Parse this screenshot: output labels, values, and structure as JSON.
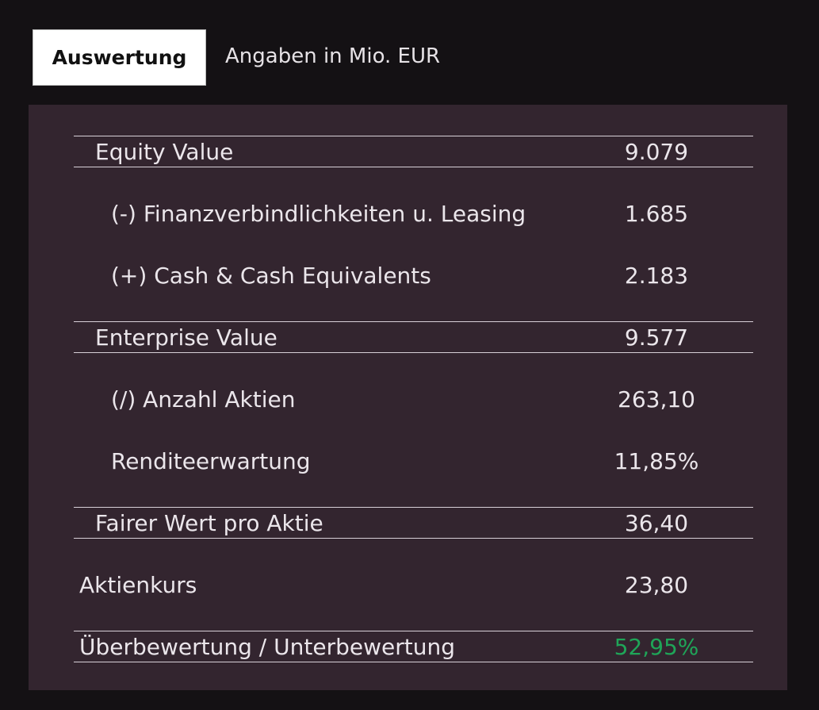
{
  "header": {
    "tab": "Auswertung",
    "note": "Angaben in Mio. EUR"
  },
  "table": {
    "rows": [
      [
        "Equity Value",
        "9.079"
      ],
      [
        "(-)  Finanzverbindlichkeiten u. Leasing",
        "1.685"
      ],
      [
        "(+) Cash & Cash Equivalents",
        "2.183"
      ],
      [
        "Enterprise Value",
        "9.577"
      ],
      [
        "(/) Anzahl Aktien",
        "263,10"
      ],
      [
        "Renditeerwartung",
        "11,85%"
      ],
      [
        "Fairer Wert pro Aktie",
        "36,40"
      ],
      [
        "Aktienkurs",
        "23,80"
      ],
      [
        "Überbewertung / Unterbewertung",
        "52,95%"
      ]
    ]
  }
}
